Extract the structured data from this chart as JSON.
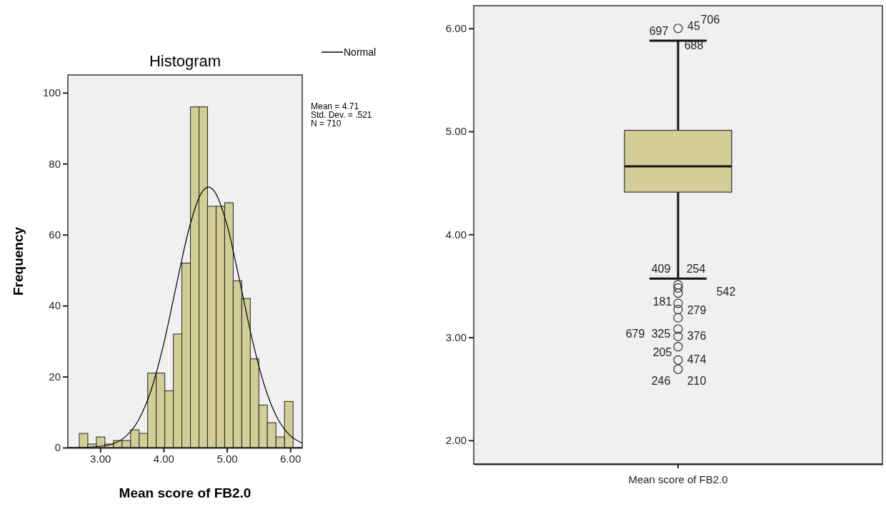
{
  "chart_data": [
    {
      "type": "histogram",
      "title": "Histogram",
      "xlabel": "Mean score of FB2.0",
      "ylabel": "Frequency",
      "color": "#d3ce97",
      "bins": [
        2.67,
        2.805,
        2.94,
        3.075,
        3.21,
        3.345,
        3.48,
        3.615,
        3.75,
        3.885,
        4.02,
        4.155,
        4.29,
        4.425,
        4.56,
        4.695,
        4.83,
        4.965,
        5.1,
        5.235,
        5.37,
        5.505,
        5.64,
        5.775,
        5.91,
        6.045
      ],
      "values": [
        4,
        1,
        3,
        1,
        2,
        2,
        5,
        4,
        21,
        21,
        16,
        32,
        52,
        96,
        96,
        68,
        68,
        69,
        47,
        42,
        25,
        12,
        7,
        3,
        13
      ],
      "series": [
        {
          "type": "line",
          "name": "Normal",
          "color": "#000000",
          "x": [
            2.5,
            2.8,
            3.1,
            3.4,
            3.6,
            3.8,
            4.0,
            4.2,
            4.4,
            4.6,
            4.71,
            4.8,
            5.0,
            5.2,
            5.4,
            5.6,
            5.8,
            6.0,
            6.19
          ],
          "values": [
            0.0,
            0.1,
            0.6,
            3.1,
            7.6,
            16.0,
            29.0,
            45.5,
            61.5,
            71.8,
            73.4,
            72.3,
            62.9,
            47.2,
            30.5,
            17.1,
            8.2,
            3.4,
            1.3
          ]
        }
      ],
      "xlim": [
        2.49,
        6.19
      ],
      "xticks": [
        {
          "value": 3,
          "label": "3.00"
        },
        {
          "value": 4,
          "label": "4.00"
        },
        {
          "value": 5,
          "label": "5.00"
        },
        {
          "value": 6,
          "label": "6.00"
        }
      ],
      "ylim": [
        0,
        105
      ],
      "yticks": [
        0,
        20,
        40,
        60,
        80,
        100
      ],
      "legend": "top right",
      "annotations": [
        "Mean = 4.71",
        "Std. Dev. = .521",
        "N = 710"
      ]
    },
    {
      "type": "box",
      "categories": [
        "Mean score of FB2.0"
      ],
      "color": "#d3ce97",
      "boxes": [
        {
          "low": 3.57,
          "q1": 4.41,
          "median": 4.66,
          "q3": 5.01,
          "high": 5.88,
          "outliers": [
            6.0,
            3.51,
            3.48,
            3.43,
            3.33,
            3.27,
            3.19,
            3.08,
            3.01,
            2.91,
            2.78,
            2.69
          ]
        }
      ],
      "ylim": [
        1.77,
        6.22
      ],
      "yticks": [
        {
          "value": 2,
          "label": "2.00"
        },
        {
          "value": 3,
          "label": "3.00"
        },
        {
          "value": 4,
          "label": "4.00"
        },
        {
          "value": 5,
          "label": "5.00"
        },
        {
          "value": 6,
          "label": "6.00"
        }
      ],
      "annotations": [
        "697",
        "45",
        "706",
        "688",
        "409",
        "254",
        "542",
        "181",
        "279",
        "679",
        "325",
        "376",
        "205",
        "474",
        "246",
        "210"
      ]
    }
  ]
}
